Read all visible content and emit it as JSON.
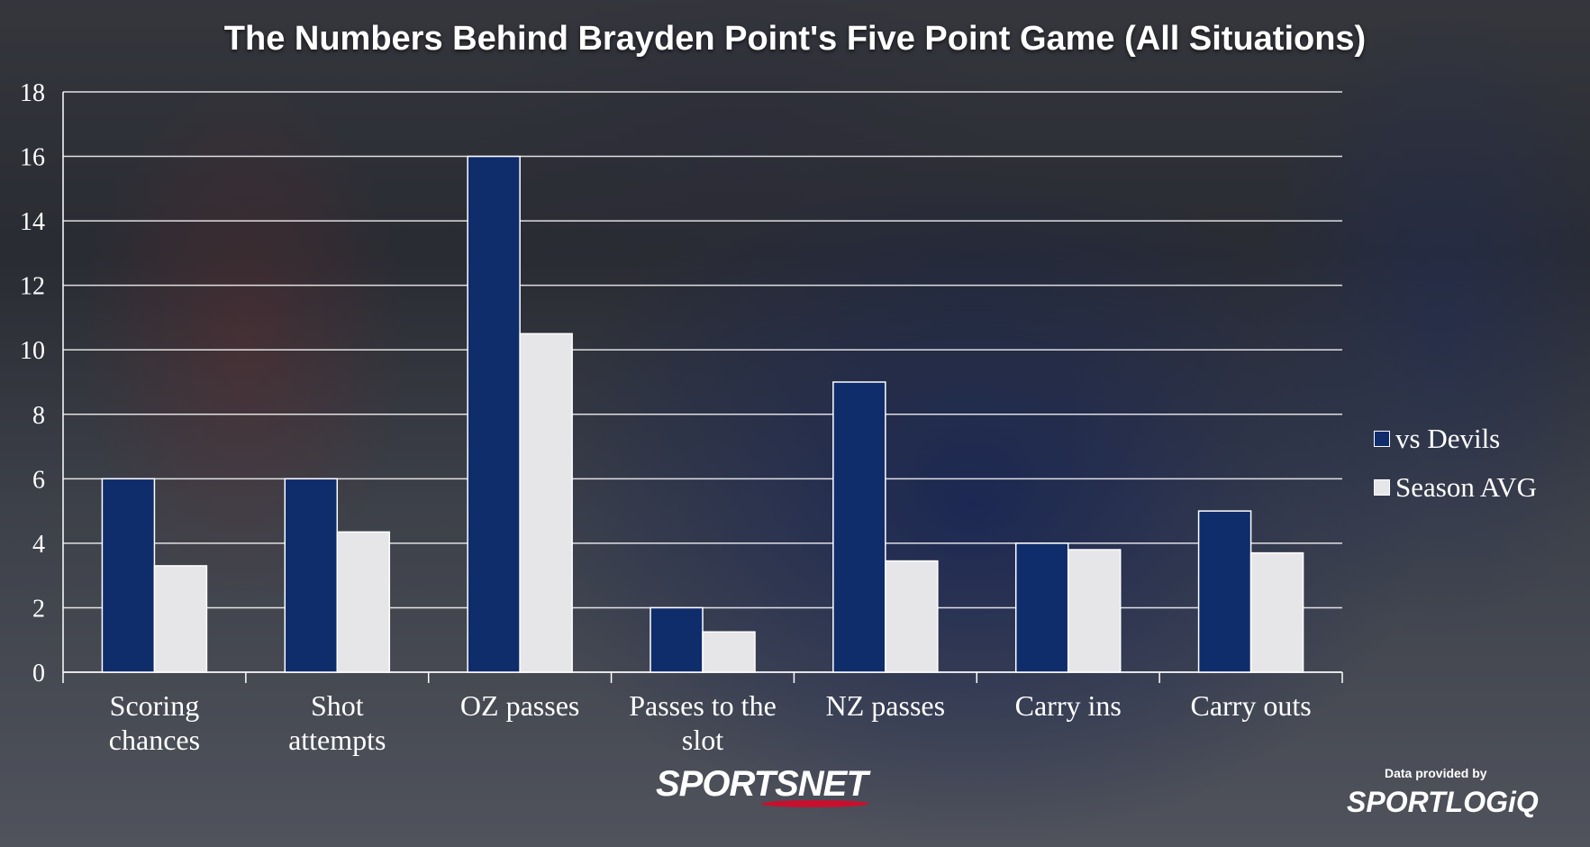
{
  "chart_data": {
    "type": "bar",
    "title": "The Numbers Behind Brayden Point's Five Point Game (All Situations)",
    "categories": [
      [
        "Scoring",
        "chances"
      ],
      [
        "Shot",
        "attempts"
      ],
      [
        "OZ passes"
      ],
      [
        "Passes to the",
        "slot"
      ],
      [
        "NZ passes"
      ],
      [
        "Carry ins"
      ],
      [
        "Carry outs"
      ]
    ],
    "series": [
      {
        "name": "vs Devils",
        "color": "#0f2c6b",
        "values": [
          6,
          6,
          16,
          2,
          9,
          4,
          5
        ]
      },
      {
        "name": "Season AVG",
        "color": "#e6e6e8",
        "values": [
          3.3,
          4.35,
          10.5,
          1.25,
          3.45,
          3.8,
          3.7
        ]
      }
    ],
    "ylim": [
      0,
      18
    ],
    "yticks": [
      0,
      2,
      4,
      6,
      8,
      10,
      12,
      14,
      16,
      18
    ],
    "xlabel": "",
    "ylabel": "",
    "grid": true,
    "legend_position": "right"
  },
  "branding": {
    "logo": "SPORTSNET",
    "provided_by": "Data provided by",
    "partner_logo": "SPORTLOGiQ"
  }
}
